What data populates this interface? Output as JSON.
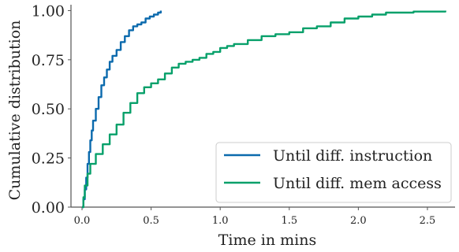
{
  "chart_data": {
    "type": "line",
    "title": "",
    "xlabel": "Time in mins",
    "ylabel": "Cumulative distribution",
    "xlim": [
      -0.08,
      2.7
    ],
    "ylim": [
      0.0,
      1.03
    ],
    "x_ticks": [
      0.0,
      0.5,
      1.0,
      1.5,
      2.0,
      2.5
    ],
    "x_tick_labels": [
      "0.0",
      "0.5",
      "1.0",
      "1.5",
      "2.0",
      "2.5"
    ],
    "y_ticks": [
      0.0,
      0.25,
      0.5,
      0.75,
      1.0
    ],
    "y_tick_labels": [
      "0.00",
      "0.25",
      "0.50",
      "0.75",
      "1.00"
    ],
    "grid": false,
    "legend_position": "bottom-right",
    "series": [
      {
        "name": "Until diff. instruction",
        "color": "#0b6aad",
        "points": [
          [
            0.0,
            0.0
          ],
          [
            0.01,
            0.04
          ],
          [
            0.02,
            0.09
          ],
          [
            0.03,
            0.15
          ],
          [
            0.04,
            0.22
          ],
          [
            0.05,
            0.28
          ],
          [
            0.06,
            0.34
          ],
          [
            0.07,
            0.39
          ],
          [
            0.08,
            0.44
          ],
          [
            0.1,
            0.5
          ],
          [
            0.12,
            0.56
          ],
          [
            0.14,
            0.62
          ],
          [
            0.16,
            0.66
          ],
          [
            0.18,
            0.7
          ],
          [
            0.2,
            0.74
          ],
          [
            0.22,
            0.77
          ],
          [
            0.25,
            0.8
          ],
          [
            0.28,
            0.84
          ],
          [
            0.31,
            0.87
          ],
          [
            0.34,
            0.9
          ],
          [
            0.37,
            0.92
          ],
          [
            0.4,
            0.93
          ],
          [
            0.43,
            0.94
          ],
          [
            0.46,
            0.96
          ],
          [
            0.49,
            0.97
          ],
          [
            0.52,
            0.98
          ],
          [
            0.55,
            0.99
          ],
          [
            0.57,
            1.0
          ]
        ]
      },
      {
        "name": "Until diff. mem access",
        "color": "#07a06a",
        "points": [
          [
            0.0,
            0.0
          ],
          [
            0.01,
            0.05
          ],
          [
            0.02,
            0.11
          ],
          [
            0.04,
            0.17
          ],
          [
            0.06,
            0.22
          ],
          [
            0.1,
            0.27
          ],
          [
            0.15,
            0.32
          ],
          [
            0.2,
            0.37
          ],
          [
            0.25,
            0.42
          ],
          [
            0.3,
            0.48
          ],
          [
            0.35,
            0.53
          ],
          [
            0.4,
            0.58
          ],
          [
            0.45,
            0.61
          ],
          [
            0.5,
            0.63
          ],
          [
            0.55,
            0.65
          ],
          [
            0.6,
            0.68
          ],
          [
            0.65,
            0.71
          ],
          [
            0.7,
            0.73
          ],
          [
            0.75,
            0.74
          ],
          [
            0.8,
            0.75
          ],
          [
            0.85,
            0.76
          ],
          [
            0.9,
            0.78
          ],
          [
            0.95,
            0.79
          ],
          [
            1.0,
            0.81
          ],
          [
            1.05,
            0.82
          ],
          [
            1.1,
            0.83
          ],
          [
            1.2,
            0.85
          ],
          [
            1.3,
            0.87
          ],
          [
            1.4,
            0.88
          ],
          [
            1.5,
            0.89
          ],
          [
            1.6,
            0.91
          ],
          [
            1.7,
            0.92
          ],
          [
            1.8,
            0.94
          ],
          [
            1.9,
            0.96
          ],
          [
            2.0,
            0.97
          ],
          [
            2.1,
            0.98
          ],
          [
            2.2,
            0.99
          ],
          [
            2.4,
            0.995
          ],
          [
            2.63,
            1.0
          ]
        ]
      }
    ]
  }
}
